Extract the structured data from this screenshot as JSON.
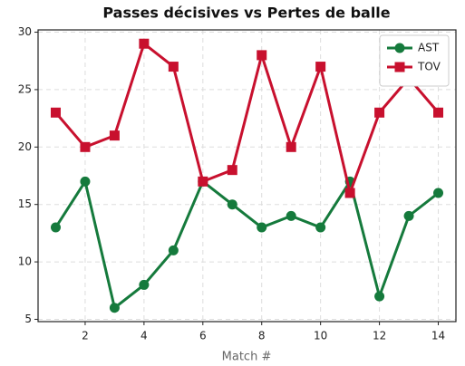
{
  "chart_data": {
    "type": "line",
    "title": "Passes décisives vs Pertes de balle",
    "x_label": "Match #",
    "x": [
      1,
      2,
      3,
      4,
      5,
      6,
      7,
      8,
      9,
      10,
      11,
      12,
      13,
      14
    ],
    "series": [
      {
        "name": "AST",
        "color": "#157a3c",
        "marker": "circle",
        "values": [
          13,
          17,
          6,
          8,
          11,
          17,
          15,
          13,
          14,
          13,
          17,
          7,
          14,
          16
        ]
      },
      {
        "name": "TOV",
        "color": "#c8102e",
        "marker": "square",
        "values": [
          23,
          20,
          21,
          29,
          27,
          17,
          18,
          28,
          20,
          27,
          16,
          23,
          26,
          23
        ]
      }
    ],
    "xlim": [
      0.4,
      14.6
    ],
    "xticks": [
      2,
      4,
      6,
      8,
      10,
      12,
      14
    ],
    "ylim": [
      4.8,
      30.2
    ],
    "yticks": [
      5,
      10,
      15,
      20,
      25,
      30
    ],
    "grid": true,
    "legend": "upper right"
  }
}
